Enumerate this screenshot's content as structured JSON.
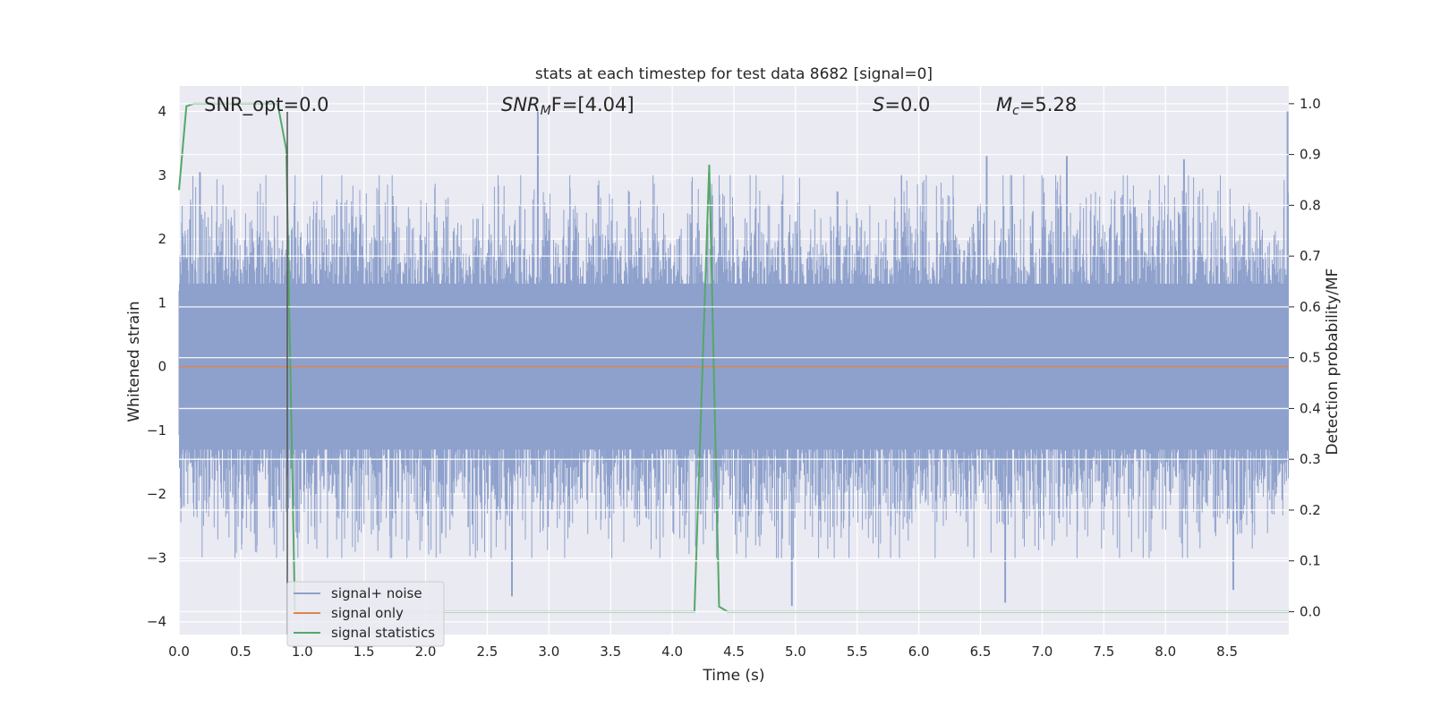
{
  "chart_data": {
    "type": "line",
    "title": "stats at each timestep for test data 8682 [signal=0]",
    "xlabel": "Time (s)",
    "ylabel": "Whitened strain",
    "y2label": "Detection probability/MF",
    "xlim": [
      0.0,
      9.0
    ],
    "ylim": [
      -4.2,
      4.4
    ],
    "y2lim": [
      -0.045,
      1.035
    ],
    "xticks": [
      "0.0",
      "0.5",
      "1.0",
      "1.5",
      "2.0",
      "2.5",
      "3.0",
      "3.5",
      "4.0",
      "4.5",
      "5.0",
      "5.5",
      "6.0",
      "6.5",
      "7.0",
      "7.5",
      "8.0",
      "8.5"
    ],
    "yticks": [
      "4",
      "3",
      "2",
      "1",
      "0",
      "−1",
      "−2",
      "−3",
      "−4"
    ],
    "y2ticks": [
      "1.0",
      "0.9",
      "0.8",
      "0.7",
      "0.6",
      "0.5",
      "0.4",
      "0.3",
      "0.2",
      "0.1",
      "0.0"
    ],
    "grid": true,
    "legend_position": "lower-left",
    "annotations": {
      "snr_opt": "SNR_opt=0.0",
      "snr_mf_sym": "SNR",
      "snr_mf_sub": "M",
      "snr_mf_rest": "F=[4.04]",
      "s_sym": "S",
      "s_rest": "=0.0",
      "mc_sym": "M",
      "mc_sub": "c",
      "mc_rest": "=5.28"
    },
    "series": [
      {
        "name": "signal+ noise",
        "color": "#8ea1cc",
        "description_style": "dense noise band",
        "spikes": [
          {
            "x": 2.91,
            "y": 4.0
          },
          {
            "x": 0.17,
            "y": 3.05
          },
          {
            "x": 6.55,
            "y": 3.3
          },
          {
            "x": 7.2,
            "y": 3.3
          },
          {
            "x": 8.15,
            "y": 3.25
          },
          {
            "x": 4.97,
            "y": -3.75
          },
          {
            "x": 6.7,
            "y": -3.7
          },
          {
            "x": 2.7,
            "y": -3.6
          },
          {
            "x": 8.55,
            "y": -3.5
          }
        ]
      },
      {
        "name": "signal only",
        "color": "#dd8452",
        "x": [
          0.0,
          9.0
        ],
        "y": [
          0.0,
          0.0
        ]
      },
      {
        "name": "signal statistics",
        "color": "#55a868",
        "axis": "right",
        "x": [
          0.0,
          0.06,
          0.12,
          0.8,
          0.87,
          0.94,
          1.0,
          4.18,
          4.3,
          4.38,
          4.45,
          9.0
        ],
        "y": [
          0.83,
          0.995,
          1.0,
          1.0,
          0.91,
          0.0,
          0.0,
          0.0,
          0.88,
          0.01,
          0.0,
          0.0
        ]
      }
    ]
  }
}
